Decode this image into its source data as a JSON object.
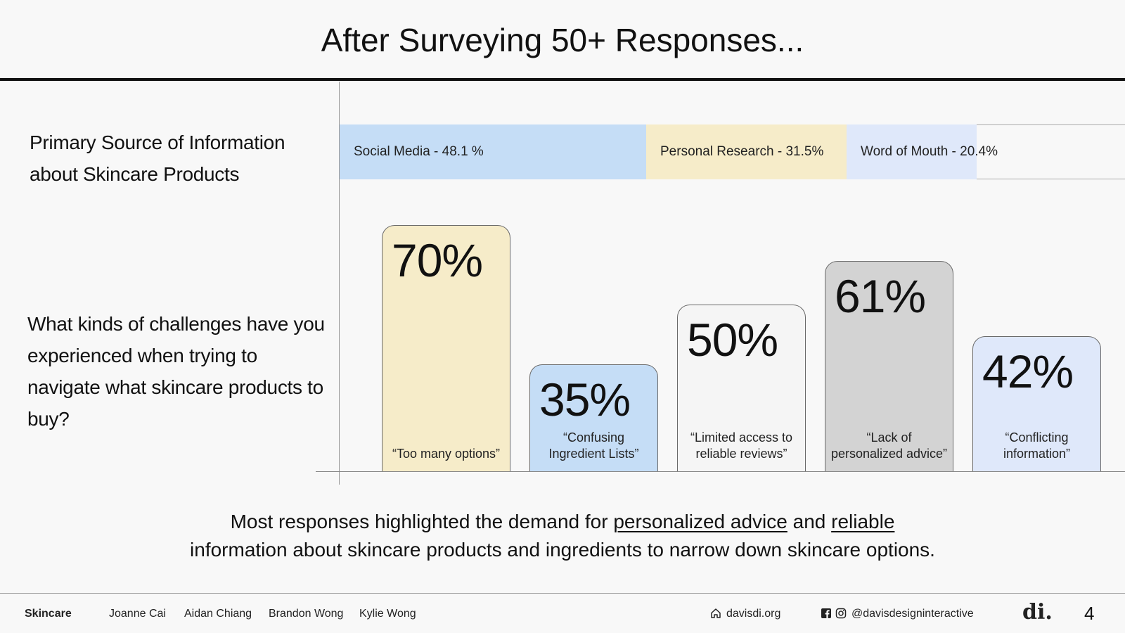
{
  "title": "After Surveying 50+ Responses...",
  "sections": {
    "source_question": "Primary Source of Information about Skincare Products",
    "challenge_question": "What kinds of challenges have you experienced when trying to navigate what skincare products to buy?"
  },
  "colors": {
    "yellow": "#f6ecc9",
    "blue": "#c5ddf6",
    "light_blue": "#dfe8fa",
    "white": "#f5f5f5",
    "gray": "#d3d3d3"
  },
  "chart_data": [
    {
      "type": "bar",
      "orientation": "horizontal-stacked",
      "title": "Primary Source of Information about Skincare Products",
      "categories": [
        "Social Media",
        "Personal Research",
        "Word of Mouth"
      ],
      "values": [
        48.1,
        31.5,
        20.4
      ],
      "labels": [
        "Social Media - 48.1 %",
        "Personal Research - 31.5%",
        "Word of Mouth - 20.4%"
      ],
      "colors": [
        "#c5ddf6",
        "#f6ecc9",
        "#dfe8fa"
      ]
    },
    {
      "type": "bar",
      "title": "What kinds of challenges have you experienced when trying to navigate what skincare products to buy?",
      "categories": [
        "“Too many options”",
        "“Confusing Ingredient Lists”",
        "“Limited access to reliable reviews”",
        "“Lack of personalized advice”",
        "“Conflicting information”"
      ],
      "values": [
        70,
        35,
        50,
        61,
        42
      ],
      "value_labels": [
        "70%",
        "35%",
        "50%",
        "61%",
        "42%"
      ],
      "colors": [
        "#f6ecc9",
        "#c5ddf6",
        "#f5f5f5",
        "#d3d3d3",
        "#dfe8fa"
      ],
      "ylim": [
        0,
        100
      ],
      "grid": false
    }
  ],
  "summary": {
    "part1": "Most responses highlighted the demand for ",
    "link1": "personalized advice",
    "part2": " and ",
    "link2": "reliable",
    "part3": "information about skincare products and ingredients to narrow down skincare options."
  },
  "footer": {
    "brand": "Skincare",
    "authors": [
      "Joanne Cai",
      "Aidan Chiang",
      "Brandon Wong",
      "Kylie Wong"
    ],
    "website": "davisdi.org",
    "social": "@davisdesigninteractive",
    "logo": "di.",
    "page": "4",
    "icons": [
      "home-icon",
      "facebook-icon",
      "instagram-icon"
    ]
  }
}
